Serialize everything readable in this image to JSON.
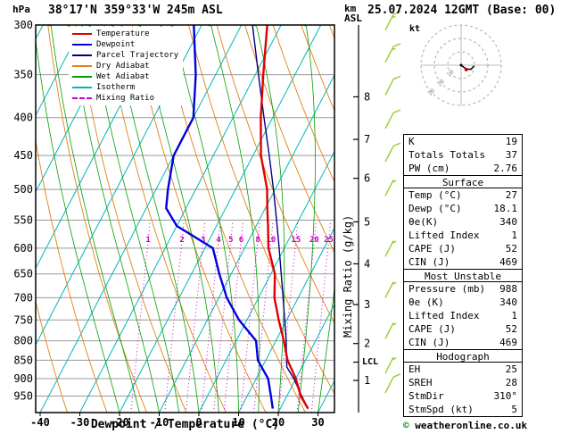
{
  "header": {
    "title": "38°17'N 359°33'W 245m ASL",
    "datetime": "25.07.2024 12GMT (Base: 00)",
    "left_axis_unit": "hPa",
    "right_axis_unit_line1": "km",
    "right_axis_unit_line2": "ASL"
  },
  "footer": {
    "copyright_symbol": "©",
    "copyright_text": " weatheronline.co.uk"
  },
  "axes": {
    "xlabel": "Dewpoint / Temperature (°C)",
    "right_label": "Mixing Ratio (g/kg)",
    "pressure_ticks": [
      300,
      350,
      400,
      450,
      500,
      550,
      600,
      650,
      700,
      750,
      800,
      850,
      900,
      950
    ],
    "temp_ticks": [
      -40,
      -30,
      -20,
      -10,
      0,
      10,
      20,
      30
    ],
    "km_ticks": [
      {
        "km": 8,
        "p": 375
      },
      {
        "km": 7,
        "p": 428
      },
      {
        "km": 6,
        "p": 483
      },
      {
        "km": 5,
        "p": 553
      },
      {
        "km": 4,
        "p": 630
      },
      {
        "km": 3,
        "p": 715
      },
      {
        "km": 2,
        "p": 807
      },
      {
        "km": 1,
        "p": 905
      }
    ],
    "lcl": {
      "label": "LCL",
      "p": 855
    }
  },
  "legend": [
    {
      "label": "Temperature",
      "color": "#e10000",
      "dash": false
    },
    {
      "label": "Dewpoint",
      "color": "#0000e1",
      "dash": false
    },
    {
      "label": "Parcel Trajectory",
      "color": "#00007f",
      "dash": false
    },
    {
      "label": "Dry Adiabat",
      "color": "#e08214",
      "dash": false
    },
    {
      "label": "Wet Adiabat",
      "color": "#00a000",
      "dash": false
    },
    {
      "label": "Isotherm",
      "color": "#00b7b7",
      "dash": false
    },
    {
      "label": "Mixing Ratio",
      "color": "#cc00cc",
      "dash": true
    }
  ],
  "chart_data": {
    "type": "skewt_log_p_sounding",
    "title": "38°17'N 359°33'W 245m ASL  25.07.2024 12GMT (Base: 00)",
    "xlabel": "Dewpoint / Temperature (°C)",
    "ylabel": "hPa",
    "pressure_range_hpa": [
      300,
      1000
    ],
    "temp_axis_range_c": [
      -40,
      30
    ],
    "profile": {
      "pressure_hpa": [
        988,
        950,
        900,
        850,
        800,
        750,
        700,
        650,
        600,
        560,
        530,
        500,
        450,
        400,
        350,
        300
      ],
      "temperature_c": [
        27,
        23.5,
        20,
        15.5,
        12,
        8,
        4,
        1,
        -4,
        -7,
        -9.5,
        -12,
        -18,
        -23,
        -28,
        -33.5
      ],
      "dewpoint_c": [
        18.1,
        16,
        13,
        8,
        5,
        -2,
        -8,
        -13,
        -18,
        -30,
        -35,
        -37,
        -40,
        -40,
        -45,
        -52
      ]
    },
    "parcel": {
      "pressure_hpa": [
        988,
        940,
        900,
        868,
        830,
        800,
        750,
        700,
        650,
        600,
        550,
        500,
        450,
        400,
        350,
        300
      ],
      "temperature_c": [
        27,
        22.9,
        19.5,
        16.2,
        14.2,
        12.6,
        9.5,
        6.2,
        2.6,
        -1.3,
        -5.6,
        -10.4,
        -15.9,
        -22.2,
        -29.2,
        -37.2
      ]
    },
    "mixing_ratio_lines_gkg": [
      1,
      2,
      3,
      4,
      5,
      6,
      8,
      10,
      15,
      20,
      25
    ],
    "winds": [
      {
        "p": 305,
        "kt": 15
      },
      {
        "p": 337,
        "kt": 15
      },
      {
        "p": 373,
        "kt": 10
      },
      {
        "p": 414,
        "kt": 10
      },
      {
        "p": 459,
        "kt": 10
      },
      {
        "p": 510,
        "kt": 5
      },
      {
        "p": 616,
        "kt": 5
      },
      {
        "p": 700,
        "kt": 5
      },
      {
        "p": 795,
        "kt": 5
      },
      {
        "p": 885,
        "kt": 5
      },
      {
        "p": 941,
        "kt": 10
      }
    ],
    "colors": {
      "temperature": "#e10000",
      "dewpoint": "#0000e1",
      "parcel": "#00007f",
      "dry_adiabat": "#e08214",
      "wet_adiabat": "#00a000",
      "isotherm": "#00b7b7",
      "mixing_ratio": "#cc00cc",
      "isobar": "#9a9a9a",
      "wind_barb": "#9acd32",
      "axis": "#000000"
    }
  },
  "hodograph": {
    "unit": "kt",
    "ring_labels": [
      10,
      20,
      30
    ],
    "trace_kt": [
      [
        0,
        0
      ],
      [
        4,
        3
      ],
      [
        7.5,
        3
      ],
      [
        9.5,
        0.5
      ]
    ],
    "storm": {
      "dir_deg": 310,
      "spd_kt": 5
    }
  },
  "table": {
    "rows": [
      {
        "type": "kv",
        "label": "K",
        "value": "19"
      },
      {
        "type": "kv",
        "label": "Totals Totals",
        "value": "37"
      },
      {
        "type": "kv",
        "label": "PW (cm)",
        "value": "2.76"
      },
      {
        "type": "header",
        "label": "Surface"
      },
      {
        "type": "kv",
        "label": "Temp (°C)",
        "value": "27"
      },
      {
        "type": "kv",
        "label": "Dewp (°C)",
        "value": "18.1"
      },
      {
        "type": "kv",
        "label": "θe(K)",
        "value": "340"
      },
      {
        "type": "kv",
        "label": "Lifted Index",
        "value": "1"
      },
      {
        "type": "kv",
        "label": "CAPE (J)",
        "value": "52"
      },
      {
        "type": "kv",
        "label": "CIN (J)",
        "value": "469"
      },
      {
        "type": "header",
        "label": "Most Unstable"
      },
      {
        "type": "kv",
        "label": "Pressure (mb)",
        "value": "988"
      },
      {
        "type": "kv",
        "label": "θe (K)",
        "value": "340"
      },
      {
        "type": "kv",
        "label": "Lifted Index",
        "value": "1"
      },
      {
        "type": "kv",
        "label": "CAPE (J)",
        "value": "52"
      },
      {
        "type": "kv",
        "label": "CIN (J)",
        "value": "469"
      },
      {
        "type": "header",
        "label": "Hodograph"
      },
      {
        "type": "kv",
        "label": "EH",
        "value": "25"
      },
      {
        "type": "kv",
        "label": "SREH",
        "value": "28"
      },
      {
        "type": "kv",
        "label": "StmDir",
        "value": "310°"
      },
      {
        "type": "kv",
        "label": "StmSpd (kt)",
        "value": "5"
      }
    ]
  }
}
